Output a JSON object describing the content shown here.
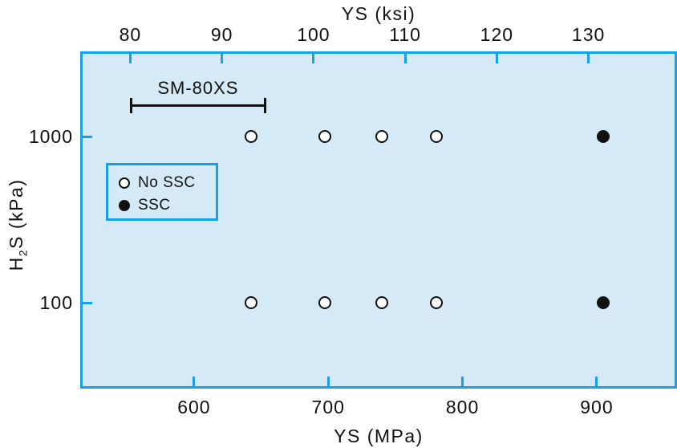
{
  "chart_data": {
    "type": "scatter",
    "axes": {
      "top": {
        "label": "YS (ksi)",
        "ticks": [
          80,
          90,
          100,
          110,
          120,
          130
        ],
        "range": [
          74.8,
          139.4
        ],
        "scale": "linear"
      },
      "bottom": {
        "label": "YS (MPa)",
        "ticks": [
          600,
          700,
          800,
          900
        ],
        "range": [
          517,
          958
        ],
        "scale": "linear"
      },
      "left": {
        "label_prefix": "H",
        "label_sub": "2",
        "label_suffix": "S (kPa)",
        "ticks": [
          1000,
          100
        ],
        "range": [
          31.6,
          3162
        ],
        "scale": "log"
      }
    },
    "series": [
      {
        "name": "No SSC",
        "marker": "open-circle",
        "points": [
          [
            643,
            1000
          ],
          [
            698,
            1000
          ],
          [
            740,
            1000
          ],
          [
            781,
            1000
          ],
          [
            643,
            100
          ],
          [
            698,
            100
          ],
          [
            740,
            100
          ],
          [
            781,
            100
          ]
        ]
      },
      {
        "name": "SSC",
        "marker": "filled-circle",
        "points": [
          [
            905,
            1000
          ],
          [
            905,
            100
          ]
        ]
      }
    ],
    "annotation": {
      "label": "SM-80XS",
      "x_start_mpa": 553,
      "x_end_mpa": 653
    },
    "legend": {
      "items": [
        {
          "marker": "open-circle",
          "label": "No SSC"
        },
        {
          "marker": "filled-circle",
          "label": "SSC"
        }
      ]
    },
    "x_unit": "MPa",
    "y_unit": "kPa",
    "grid": false,
    "colors": {
      "plot_fill": "#d5eaf6",
      "axis_blue": "#17a0e4",
      "ink": "#111111"
    }
  }
}
